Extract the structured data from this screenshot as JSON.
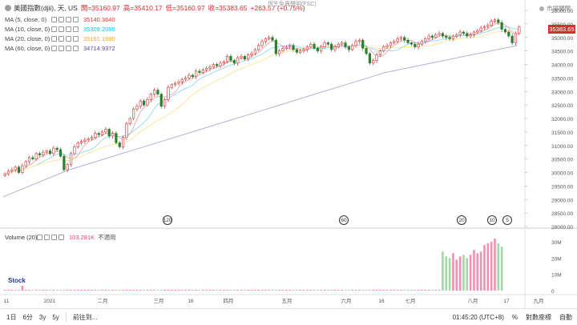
{
  "header": {
    "symbol": "美國指數(djii), 天, US",
    "open_label": "開=35160.97",
    "high_label": "高=35410.17",
    "low_label": "低=35160.97",
    "close_label": "收=35383.65",
    "change_label": "+263.57 (+0.75%)",
    "market_status": "市場關閉",
    "watermark": "恆生免責聲明(FSC)"
  },
  "moving_averages": [
    {
      "label": "MA (5, close, 0)",
      "value": "35140.3640",
      "color": "#e53935"
    },
    {
      "label": "MA (10, close, 0)",
      "value": "35309.2090",
      "color": "#29b6f6"
    },
    {
      "label": "MA (20, close, 0)",
      "value": "35161.1690",
      "color": "#f9a825"
    },
    {
      "label": "MA (60, close, 0)",
      "value": "34714.9372",
      "color": "#5c4b9e"
    }
  ],
  "volume_indicator": {
    "label": "Volume (20)",
    "value": "103.281K",
    "note": "不適用"
  },
  "chart_data": {
    "type": "candlestick",
    "last_price": "35383.65",
    "price_axis": {
      "min": 28000,
      "max": 36000,
      "ticks": [
        "36000.00",
        "35500.00",
        "35000.00",
        "34500.00",
        "34000.00",
        "33500.00",
        "33000.00",
        "32500.00",
        "32000.00",
        "31500.00",
        "31000.00",
        "30500.00",
        "30000.00",
        "29500.00",
        "29000.00",
        "28500.00",
        "28000.00"
      ]
    },
    "volume_axis": {
      "ticks": [
        "30M",
        "20M",
        "10M",
        "0"
      ]
    },
    "time_axis": [
      "11",
      "2021",
      "二月",
      "三月",
      "16",
      "四月",
      "五月",
      "六月",
      "16",
      "七月",
      "八月",
      "17",
      "九月"
    ],
    "ma60_curve": [
      29100,
      29300,
      29500,
      29700,
      29900,
      30100,
      30250,
      30400,
      30550,
      30700,
      30850,
      31000,
      31150,
      31300,
      31450,
      31600,
      31750,
      31900,
      32050,
      32200,
      32350,
      32500,
      32650,
      32800,
      32950,
      33100,
      33250,
      33400,
      33550,
      33700,
      33800,
      33900,
      34000,
      34100,
      34200,
      34300,
      34400,
      34500,
      34600,
      34700
    ],
    "price_series": [
      29950,
      30050,
      30100,
      30200,
      30000,
      30250,
      30400,
      30550,
      30500,
      30700,
      30650,
      30750,
      30800,
      30700,
      30900,
      30850,
      30600,
      30100,
      30300,
      30700,
      30950,
      31100,
      31150,
      31200,
      31250,
      31300,
      31450,
      31400,
      31500,
      31600,
      31350,
      31450,
      31100,
      30950,
      31300,
      31800,
      32000,
      32350,
      32450,
      32650,
      32500,
      32700,
      32900,
      33050,
      32900,
      32450,
      32700,
      33150,
      33250,
      33300,
      33350,
      33450,
      33500,
      33600,
      33550,
      33750,
      33700,
      33800,
      33850,
      33900,
      34000,
      33950,
      34050,
      34100,
      34300,
      34150,
      34050,
      34250,
      34300,
      34200,
      34350,
      34400,
      34550,
      34700,
      34850,
      34950,
      35000,
      34900,
      34400,
      34500,
      34600,
      34650,
      34700,
      34550,
      34450,
      34500,
      34550,
      34650,
      34750,
      34600,
      34500,
      34650,
      34800,
      34750,
      34550,
      34650,
      34750,
      34800,
      34650,
      34550,
      34700,
      34850,
      34900,
      34600,
      34400,
      34050,
      34150,
      34350,
      34500,
      34650,
      34700,
      34800,
      34850,
      34950,
      35000,
      34900,
      34800,
      34750,
      34650,
      34750,
      34850,
      34950,
      35050,
      35000,
      35100,
      35150,
      35050,
      35000,
      34950,
      35050,
      35100,
      35200,
      35150,
      35050,
      35100,
      35200,
      35250,
      35350,
      35400,
      35450,
      35600,
      35650,
      35550,
      35300,
      35200,
      35050,
      34800,
      35150,
      35384
    ],
    "volume_series": [
      0.5,
      0.5,
      0.5,
      0.4,
      0.5,
      3,
      0.5,
      0.5,
      0.4,
      0.5,
      0.5,
      0.5,
      0.5,
      0.5,
      0.5,
      0.5,
      0.5,
      0.5,
      0.5,
      0.5,
      0.5,
      0.5,
      0.5,
      0.5,
      0.5,
      0.5,
      0.5,
      0.5,
      0.5,
      0.5,
      0.5,
      0.5,
      0.5,
      0.5,
      0.5,
      0.5,
      0.5,
      0.5,
      0.5,
      0.5,
      0.5,
      0.5,
      0.5,
      0.5,
      0.5,
      0.5,
      0.5,
      0.5,
      0.5,
      0.5,
      0.5,
      0.5,
      0.5,
      0.5,
      0.5,
      0.5,
      0.5,
      0.5,
      0.5,
      0.5,
      0.5,
      0.5,
      0.5,
      0.5,
      0.5,
      0.5,
      0.5,
      0.5,
      0.5,
      0.5,
      0.5,
      0.5,
      0.5,
      0.5,
      0.5,
      0.5,
      0.5,
      0.5,
      0.5,
      0.5,
      0.5,
      0.5,
      0.5,
      0.5,
      0.5,
      0.5,
      0.5,
      0.5,
      0.5,
      0.5,
      0.5,
      0.5,
      0.5,
      0.5,
      0.5,
      0.5,
      0.5,
      0.5,
      0.5,
      0.5,
      0.5,
      0.5,
      0.5,
      0.5,
      0.5,
      0.5,
      0.5,
      0.5,
      0.5,
      0.5,
      0.5,
      0.5,
      0.5,
      0.5,
      0.5,
      0.5,
      0.5,
      0.5,
      0.5,
      0.5,
      0.5,
      0.5,
      0.5,
      0.5,
      0.5,
      0.5,
      24,
      21,
      20,
      23,
      19,
      21,
      22,
      20,
      22,
      25,
      23,
      24,
      28,
      29,
      30,
      32,
      29,
      27
    ]
  },
  "events": [
    {
      "label": "120",
      "color": "#e57373"
    },
    {
      "label": "60",
      "color": "#ce93d8"
    },
    {
      "label": "20",
      "color": "#66bb6a"
    },
    {
      "label": "10",
      "color": "#5c6bc0"
    },
    {
      "label": "5",
      "color": "#ef5350"
    }
  ],
  "bottom_bar": {
    "ranges": [
      "1日",
      "6分",
      "3y",
      "5y"
    ],
    "goto": "前往到...",
    "time": "01:45:20 (UTC+8)",
    "percent": "%",
    "log": "對數座標",
    "auto": "自動"
  },
  "logo_text": "Stock"
}
